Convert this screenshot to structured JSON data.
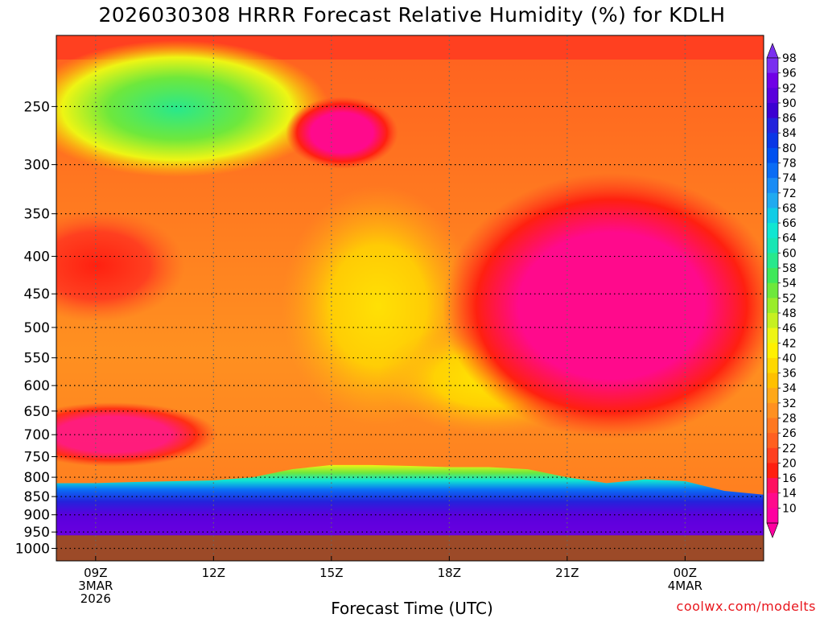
{
  "chart_data": {
    "type": "heatmap",
    "title": "2026030308 HRRR Forecast Relative Humidity (%) for KDLH",
    "xlabel": "Forecast Time (UTC)",
    "ylabel": "",
    "credit": "coolwx.com/modelts",
    "y_ticks": [
      "250",
      "300",
      "350",
      "400",
      "450",
      "500",
      "550",
      "600",
      "650",
      "700",
      "750",
      "800",
      "850",
      "900",
      "950",
      "1000"
    ],
    "x_ticks": [
      {
        "label": "09Z",
        "sub1": "3MAR",
        "sub2": "2026",
        "hour": 9
      },
      {
        "label": "12Z",
        "sub1": "",
        "sub2": "",
        "hour": 12
      },
      {
        "label": "15Z",
        "sub1": "",
        "sub2": "",
        "hour": 15
      },
      {
        "label": "18Z",
        "sub1": "",
        "sub2": "",
        "hour": 18
      },
      {
        "label": "21Z",
        "sub1": "",
        "sub2": "",
        "hour": 21
      },
      {
        "label": "00Z",
        "sub1": "4MAR",
        "sub2": "",
        "hour": 24
      }
    ],
    "x_range_hours": [
      8,
      26
    ],
    "y_range_hpa": [
      200,
      1040
    ],
    "surface_hpa": 960,
    "grid": true,
    "colorbar_labels": [
      "98",
      "96",
      "92",
      "90",
      "86",
      "84",
      "80",
      "78",
      "74",
      "72",
      "68",
      "66",
      "64",
      "60",
      "58",
      "54",
      "52",
      "48",
      "46",
      "42",
      "40",
      "36",
      "34",
      "32",
      "28",
      "26",
      "22",
      "20",
      "16",
      "14",
      "10"
    ],
    "colorbar_colors": [
      "#7a2ff0",
      "#7000e6",
      "#5a00dc",
      "#3c00d2",
      "#2323dc",
      "#0a37e6",
      "#0050f0",
      "#0a6cf5",
      "#1a8cf5",
      "#20aaf0",
      "#10cce6",
      "#10e6d2",
      "#18e6b4",
      "#28e88c",
      "#40e85a",
      "#6ee83c",
      "#9aec2a",
      "#c6f020",
      "#eef514",
      "#fff000",
      "#ffd800",
      "#ffc000",
      "#ffa818",
      "#ff9020",
      "#ff7820",
      "#ff6020",
      "#ff4020",
      "#ff2010",
      "#ff1060",
      "#ff0a8c",
      "#ff00a0"
    ],
    "terrain_color": "#9c4a28",
    "rh_profile_hours": [
      8,
      9,
      10,
      11,
      12,
      13,
      14,
      15,
      16,
      17,
      18,
      19,
      20,
      21,
      22,
      23,
      24,
      25,
      26
    ],
    "rh_low_level_boundary_hpa": [
      815,
      815,
      812,
      810,
      808,
      800,
      780,
      770,
      770,
      772,
      775,
      775,
      780,
      800,
      815,
      805,
      810,
      835,
      845
    ]
  }
}
